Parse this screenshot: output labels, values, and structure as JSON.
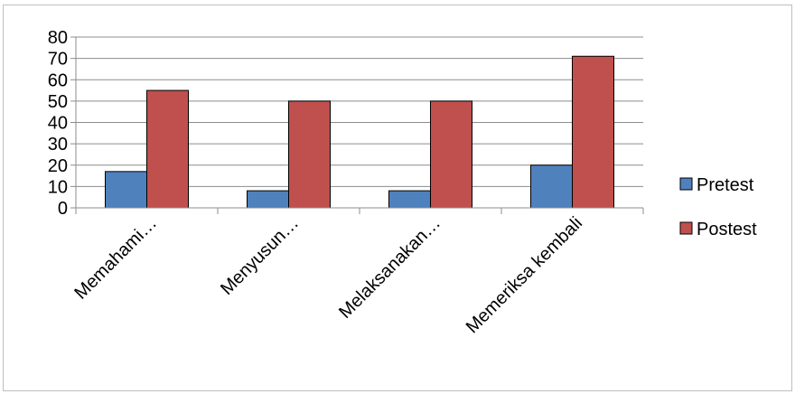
{
  "chart_data": {
    "type": "bar",
    "categories": [
      "Memahami…",
      "Menyusun…",
      "Melaksanakan…",
      "Memeriksa kembali"
    ],
    "series": [
      {
        "name": "Pretest",
        "values": [
          17,
          8,
          8,
          20
        ],
        "color": "#4f81bd"
      },
      {
        "name": "Postest",
        "values": [
          55,
          50,
          50,
          71
        ],
        "color": "#c0504d"
      }
    ],
    "y_ticks": [
      "0",
      "10",
      "20",
      "30",
      "40",
      "50",
      "60",
      "70",
      "80"
    ],
    "ylim": [
      0,
      80
    ],
    "grid": true,
    "legend_position": "right"
  }
}
